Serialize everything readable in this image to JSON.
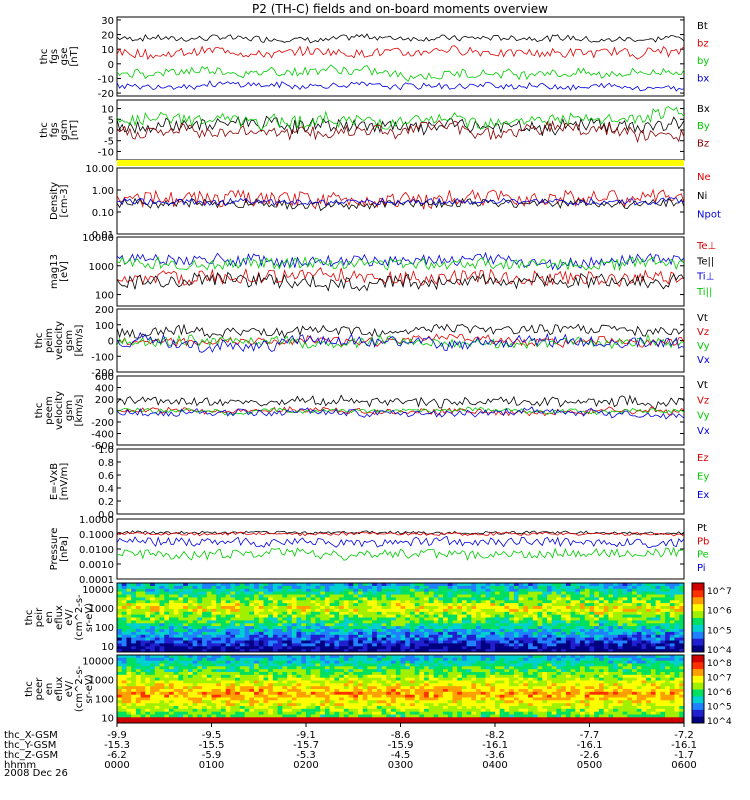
{
  "title": "P2 (TH-C) fields and on-board moments overview",
  "date": "2008 Dec 26",
  "colors": {
    "black": "#000000",
    "red": "#e00000",
    "green": "#00cc00",
    "blue": "#0000e0",
    "darkred": "#8b0000",
    "yellow": "#ffff00"
  },
  "chart_data": [
    {
      "type": "line",
      "ylabel": [
        "thc",
        "fgs",
        "gse",
        "[nT]"
      ],
      "yticks": [
        "30",
        "20",
        "10",
        "0",
        "-10",
        "-20"
      ],
      "ylim": [
        -22,
        32
      ],
      "log": false,
      "series": [
        {
          "name": "Bt",
          "color": "#000000",
          "level": 18,
          "noise": 2
        },
        {
          "name": "bz",
          "color": "#e00000",
          "level": 8,
          "noise": 3
        },
        {
          "name": "by",
          "color": "#00cc00",
          "level": -6,
          "noise": 3
        },
        {
          "name": "bx",
          "color": "#0000e0",
          "level": -15,
          "noise": 2
        }
      ]
    },
    {
      "type": "line",
      "ylabel": [
        "thc",
        "fgs",
        "gsm",
        "[nT]"
      ],
      "yticks": [
        "10",
        "5",
        "0",
        "-5",
        "-10"
      ],
      "ylim": [
        -14,
        14
      ],
      "log": false,
      "series": [
        {
          "name": "Bx",
          "color": "#000000",
          "level": 2,
          "noise": 3
        },
        {
          "name": "By",
          "color": "#00cc00",
          "level": 5,
          "noise": 3
        },
        {
          "name": "Bz",
          "color": "#8b0000",
          "level": 0,
          "noise": 3
        }
      ]
    },
    {
      "type": "bar",
      "ylabel": [],
      "yticks": [],
      "color": "#ffff00"
    },
    {
      "type": "line",
      "ylabel": [
        "Density",
        "[cm-3]"
      ],
      "yticks": [
        "10.00",
        "1.00",
        "0.10",
        "0.01"
      ],
      "ylim": [
        0.01,
        10
      ],
      "log": true,
      "series": [
        {
          "name": "Ne",
          "color": "#e00000",
          "level": 0.4,
          "noise": 0.35
        },
        {
          "name": "Ni",
          "color": "#000000",
          "level": 0.25,
          "noise": 0.2
        },
        {
          "name": "Npot",
          "color": "#0000e0",
          "level": 0.3,
          "noise": 0.15
        }
      ]
    },
    {
      "type": "line",
      "ylabel": [
        "mag13",
        "[eV]"
      ],
      "yticks": [
        "10000",
        "1000",
        "100"
      ],
      "ylim": [
        40,
        10000
      ],
      "log": true,
      "series": [
        {
          "name": "Te⊥",
          "color": "#e00000",
          "level": 400,
          "noise": 0.25
        },
        {
          "name": "Te||",
          "color": "#000000",
          "level": 300,
          "noise": 0.25
        },
        {
          "name": "Ti⊥",
          "color": "#0000e0",
          "level": 1500,
          "noise": 0.2
        },
        {
          "name": "Ti||",
          "color": "#00cc00",
          "level": 1200,
          "noise": 0.2
        }
      ]
    },
    {
      "type": "line",
      "ylabel": [
        "thc",
        "peim",
        "velocity",
        "gsm",
        "[km/s]"
      ],
      "yticks": [
        "200",
        "100",
        "0",
        "-100",
        "-200"
      ],
      "ylim": [
        -200,
        200
      ],
      "log": false,
      "series": [
        {
          "name": "Vt",
          "color": "#000000",
          "level": 60,
          "noise": 30
        },
        {
          "name": "Vz",
          "color": "#e00000",
          "level": 0,
          "noise": 25
        },
        {
          "name": "Vy",
          "color": "#00cc00",
          "level": -10,
          "noise": 30
        },
        {
          "name": "Vx",
          "color": "#0000e0",
          "level": -20,
          "noise": 35
        }
      ]
    },
    {
      "type": "line",
      "ylabel": [
        "thc",
        "peem",
        "velocity",
        "gsm",
        "[km/s]"
      ],
      "yticks": [
        "600",
        "400",
        "200",
        "0",
        "-200",
        "-400",
        "-600"
      ],
      "ylim": [
        -600,
        600
      ],
      "log": false,
      "series": [
        {
          "name": "Vt",
          "color": "#000000",
          "level": 150,
          "noise": 80
        },
        {
          "name": "Vz",
          "color": "#e00000",
          "level": 0,
          "noise": 50
        },
        {
          "name": "Vy",
          "color": "#00cc00",
          "level": 0,
          "noise": 40
        },
        {
          "name": "Vx",
          "color": "#0000e0",
          "level": -30,
          "noise": 60
        }
      ]
    },
    {
      "type": "line",
      "ylabel": [
        "E=-VxB",
        "[mV/m]"
      ],
      "yticks": [
        "1.0",
        "0.8",
        "0.6",
        "0.4",
        "0.2",
        "0.0"
      ],
      "ylim": [
        0,
        1
      ],
      "log": false,
      "series": [
        {
          "name": "Ez",
          "color": "#e00000",
          "level": null
        },
        {
          "name": "Ey",
          "color": "#00cc00",
          "level": null
        },
        {
          "name": "Ex",
          "color": "#0000e0",
          "level": null
        }
      ]
    },
    {
      "type": "line",
      "ylabel": [
        "Pressure",
        "[nPa]"
      ],
      "yticks": [
        "1.0000",
        "0.1000",
        "0.0100",
        "0.0010",
        "0.0001"
      ],
      "ylim": [
        0.0001,
        1
      ],
      "log": true,
      "series": [
        {
          "name": "Pt",
          "color": "#000000",
          "level": 0.12,
          "noise": 0.1
        },
        {
          "name": "Pb",
          "color": "#e00000",
          "level": 0.1,
          "noise": 0.1
        },
        {
          "name": "Pe",
          "color": "#00cc00",
          "level": 0.005,
          "noise": 0.3
        },
        {
          "name": "Pi",
          "color": "#0000e0",
          "level": 0.03,
          "noise": 0.3
        }
      ]
    },
    {
      "type": "heatmap",
      "ylabel": [
        "thc",
        "peir",
        "en",
        "eflux",
        "eV/",
        "(cm^2-s-",
        "sr-eV)"
      ],
      "yticks": [
        "10000",
        "1000",
        "100",
        "10"
      ],
      "ylim": [
        5,
        20000
      ],
      "log": true,
      "colorbar": [
        "10^7",
        "10^6",
        "10^5",
        "10^4"
      ]
    },
    {
      "type": "heatmap",
      "ylabel": [
        "thc",
        "peer",
        "en",
        "eflux",
        "eV/",
        "(cm^2-s-",
        "sr-eV)"
      ],
      "yticks": [
        "10000",
        "1000",
        "100",
        "10"
      ],
      "ylim": [
        5,
        20000
      ],
      "log": true,
      "colorbar": [
        "10^8",
        "10^7",
        "10^6",
        "10^5",
        "10^4"
      ]
    }
  ],
  "xaxis": {
    "rows": [
      {
        "label": "thc_X-GSM",
        "values": [
          "-9.9",
          "-9.5",
          "-9.1",
          "-8.6",
          "-8.2",
          "-7.7",
          "-7.2"
        ]
      },
      {
        "label": "thc_Y-GSM",
        "values": [
          "-15.3",
          "-15.5",
          "-15.7",
          "-15.9",
          "-16.1",
          "-16.1",
          "-16.1"
        ]
      },
      {
        "label": "thc_Z-GSM",
        "values": [
          "-6.2",
          "-5.9",
          "-5.3",
          "-4.5",
          "-3.6",
          "-2.6",
          "-1.7"
        ]
      },
      {
        "label": "hhmm",
        "values": [
          "0000",
          "0100",
          "0200",
          "0300",
          "0400",
          "0500",
          "0600"
        ]
      }
    ]
  }
}
